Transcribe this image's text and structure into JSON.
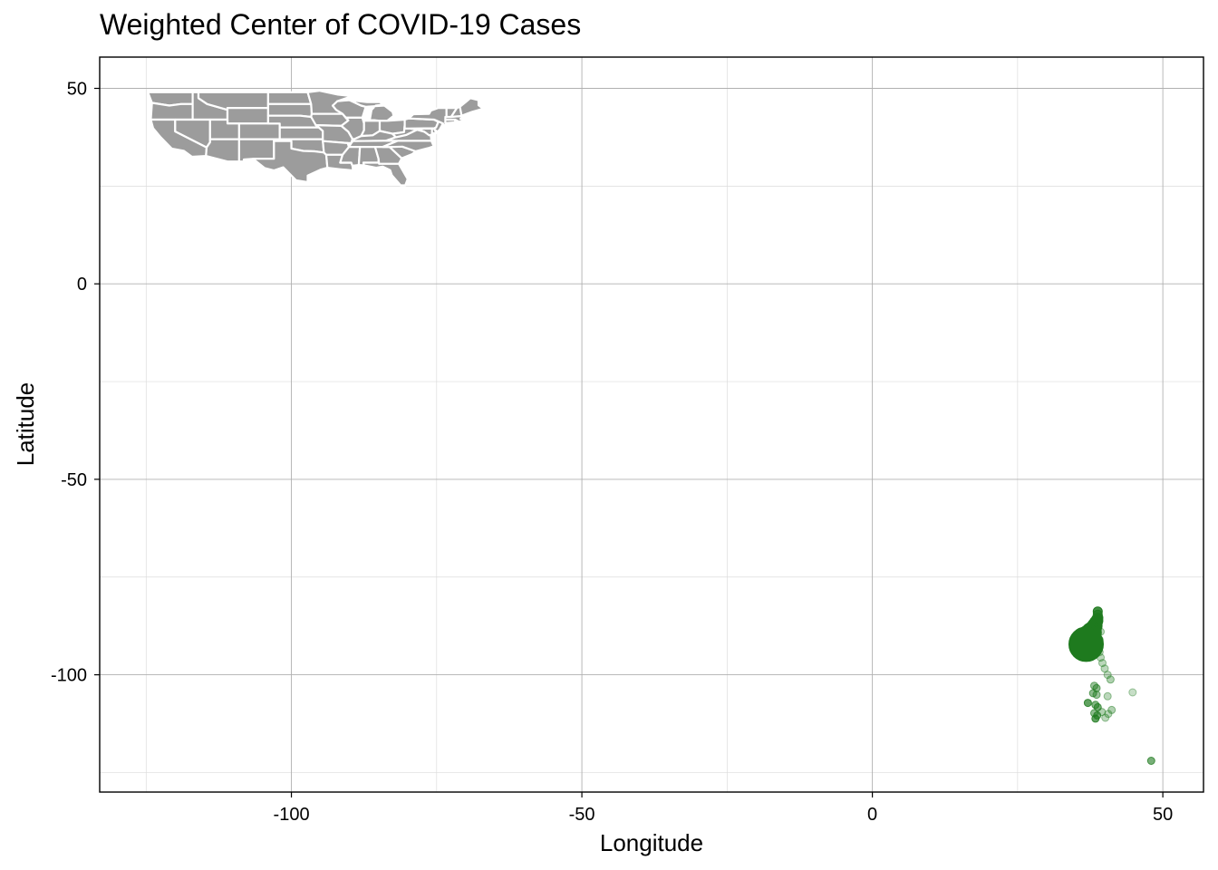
{
  "chart_data": {
    "type": "scatter",
    "title": "Weighted Center of COVID-19 Cases",
    "xlabel": "Longitude",
    "ylabel": "Latitude",
    "xlim": [
      -133,
      57
    ],
    "ylim": [
      -130,
      58
    ],
    "x_ticks": [
      -100,
      -50,
      0,
      50
    ],
    "y_ticks": [
      50,
      0,
      -50,
      -100
    ],
    "x_tick_labels": [
      "-100",
      "-50",
      "0",
      "50"
    ],
    "y_tick_labels": [
      "50",
      "0",
      "-50",
      "-100"
    ],
    "grid": true,
    "legend": "none",
    "point_color": "#1e7a1e",
    "map_fill": "#9c9c9c",
    "map_border": "#ffffff",
    "map_region": "Contiguous United States",
    "map_extent": {
      "lon": [
        -125,
        -67
      ],
      "lat": [
        25,
        49
      ]
    },
    "series": [
      {
        "points": [
          {
            "x": 48.0,
            "y": -122.0,
            "opacity": 0.6,
            "size": 4
          },
          {
            "x": 44.8,
            "y": -104.5,
            "opacity": 0.25,
            "size": 4
          },
          {
            "x": 41.2,
            "y": -109.0,
            "opacity": 0.35,
            "size": 4
          },
          {
            "x": 40.6,
            "y": -110.0,
            "opacity": 0.3,
            "size": 4
          },
          {
            "x": 40.1,
            "y": -111.0,
            "opacity": 0.3,
            "size": 4
          },
          {
            "x": 39.5,
            "y": -109.5,
            "opacity": 0.35,
            "size": 4
          },
          {
            "x": 38.4,
            "y": -111.2,
            "opacity": 0.7,
            "size": 4
          },
          {
            "x": 38.7,
            "y": -110.4,
            "opacity": 0.6,
            "size": 4
          },
          {
            "x": 38.2,
            "y": -109.8,
            "opacity": 0.5,
            "size": 4
          },
          {
            "x": 38.8,
            "y": -108.3,
            "opacity": 0.6,
            "size": 4
          },
          {
            "x": 38.4,
            "y": -107.7,
            "opacity": 0.55,
            "size": 4
          },
          {
            "x": 37.1,
            "y": -107.2,
            "opacity": 0.7,
            "size": 4
          },
          {
            "x": 40.5,
            "y": -105.5,
            "opacity": 0.3,
            "size": 4
          },
          {
            "x": 38.6,
            "y": -105.1,
            "opacity": 0.45,
            "size": 4
          },
          {
            "x": 38.0,
            "y": -104.7,
            "opacity": 0.5,
            "size": 4
          },
          {
            "x": 38.6,
            "y": -103.4,
            "opacity": 0.5,
            "size": 4
          },
          {
            "x": 38.2,
            "y": -102.8,
            "opacity": 0.45,
            "size": 4
          },
          {
            "x": 41.0,
            "y": -101.2,
            "opacity": 0.35,
            "size": 4
          },
          {
            "x": 40.5,
            "y": -100.0,
            "opacity": 0.3,
            "size": 4
          },
          {
            "x": 40.0,
            "y": -98.4,
            "opacity": 0.3,
            "size": 4
          },
          {
            "x": 39.6,
            "y": -97.0,
            "opacity": 0.3,
            "size": 4
          },
          {
            "x": 39.3,
            "y": -95.6,
            "opacity": 0.3,
            "size": 4
          },
          {
            "x": 39.1,
            "y": -94.2,
            "opacity": 0.3,
            "size": 4
          },
          {
            "x": 38.9,
            "y": -93.0,
            "opacity": 0.3,
            "size": 4
          },
          {
            "x": 39.1,
            "y": -91.0,
            "opacity": 0.3,
            "size": 4
          },
          {
            "x": 39.3,
            "y": -89.0,
            "opacity": 0.3,
            "size": 4
          },
          {
            "x": 38.9,
            "y": -87.8,
            "opacity": 0.5,
            "size": 4
          },
          {
            "x": 38.8,
            "y": -87.0,
            "opacity": 0.6,
            "size": 4
          },
          {
            "x": 38.9,
            "y": -86.2,
            "opacity": 0.7,
            "size": 5
          },
          {
            "x": 38.9,
            "y": -85.4,
            "opacity": 0.75,
            "size": 5
          },
          {
            "x": 38.8,
            "y": -84.6,
            "opacity": 0.8,
            "size": 5
          },
          {
            "x": 38.8,
            "y": -83.8,
            "opacity": 0.85,
            "size": 5
          },
          {
            "x": 38.7,
            "y": -85.8,
            "opacity": 0.85,
            "size": 6
          },
          {
            "x": 38.5,
            "y": -86.6,
            "opacity": 0.85,
            "size": 7
          },
          {
            "x": 38.3,
            "y": -87.4,
            "opacity": 0.85,
            "size": 8
          },
          {
            "x": 38.0,
            "y": -88.3,
            "opacity": 0.85,
            "size": 9
          },
          {
            "x": 37.7,
            "y": -89.2,
            "opacity": 0.85,
            "size": 11
          },
          {
            "x": 37.3,
            "y": -90.3,
            "opacity": 0.9,
            "size": 13
          },
          {
            "x": 36.9,
            "y": -91.5,
            "opacity": 0.95,
            "size": 16
          },
          {
            "x": 36.8,
            "y": -92.2,
            "opacity": 1.0,
            "size": 19
          }
        ]
      }
    ]
  }
}
